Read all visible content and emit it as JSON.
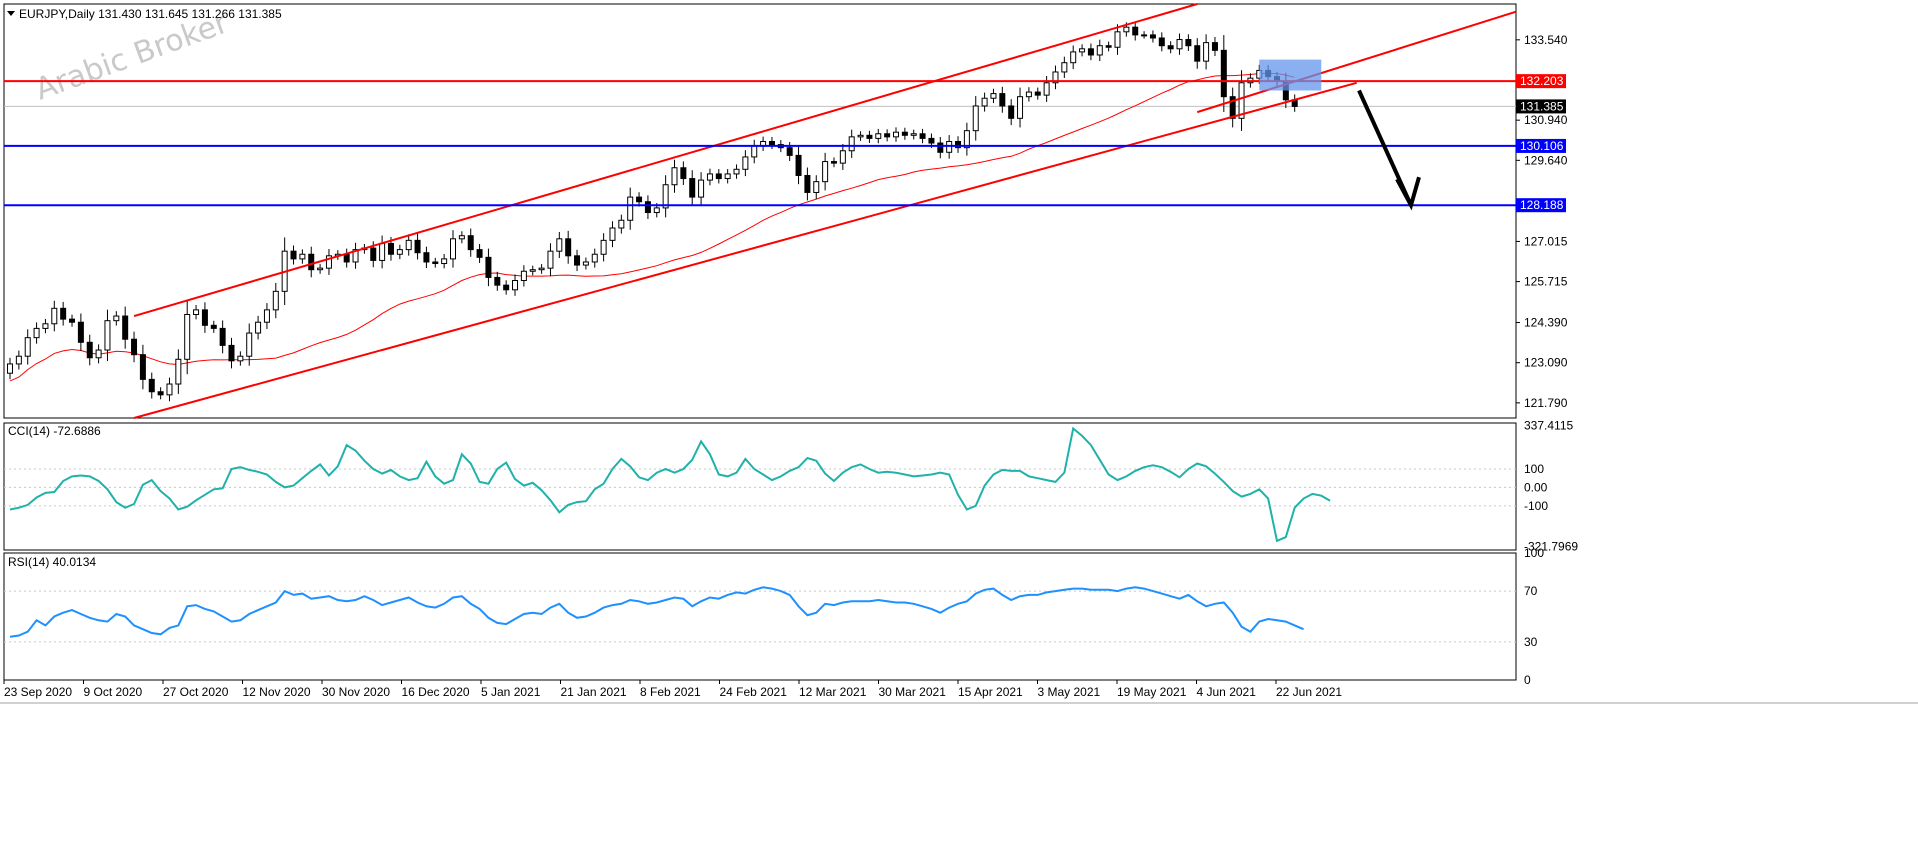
{
  "header": {
    "symbol_line": "EURJPY,Daily  131.430 131.645 131.266 131.385"
  },
  "watermark": "Arabic Broker",
  "chart_data": {
    "type": "candlestick",
    "symbol": "EURJPY",
    "timeframe": "Daily",
    "ohlc_header": {
      "open": 131.43,
      "high": 131.645,
      "low": 131.266,
      "close": 131.385
    },
    "price_axis": {
      "ticks": [
        "133.540",
        "130.940",
        "129.640",
        "127.015",
        "125.715",
        "124.390",
        "123.090",
        "121.790"
      ],
      "range": [
        121.3,
        134.7
      ]
    },
    "current_price_label": "131.385",
    "horizontal_levels": [
      {
        "value": 132.203,
        "label": "132.203",
        "color": "#ff0000"
      },
      {
        "value": 130.106,
        "label": "130.106",
        "color": "#0000ff"
      },
      {
        "value": 128.188,
        "label": "128.188",
        "color": "#0000ff"
      }
    ],
    "date_axis": [
      "23 Sep 2020",
      "9 Oct 2020",
      "27 Oct 2020",
      "12 Nov 2020",
      "30 Nov 2020",
      "16 Dec 2020",
      "5 Jan 2021",
      "21 Jan 2021",
      "8 Feb 2021",
      "24 Feb 2021",
      "12 Mar 2021",
      "30 Mar 2021",
      "15 Apr 2021",
      "3 May 2021",
      "19 May 2021",
      "4 Jun 2021",
      "22 Jun 2021"
    ],
    "closes": [
      123.05,
      123.3,
      123.9,
      124.2,
      124.35,
      124.85,
      124.5,
      124.4,
      123.75,
      123.25,
      123.5,
      124.45,
      124.6,
      123.85,
      123.35,
      122.55,
      122.15,
      122.05,
      122.4,
      123.2,
      124.65,
      124.8,
      124.3,
      124.2,
      123.65,
      123.15,
      123.3,
      124.05,
      124.4,
      124.8,
      125.4,
      126.7,
      126.45,
      126.6,
      126.1,
      126.15,
      126.55,
      126.6,
      126.35,
      126.75,
      126.8,
      126.4,
      126.95,
      126.6,
      126.75,
      127.05,
      126.65,
      126.35,
      126.3,
      126.45,
      127.1,
      127.2,
      126.75,
      126.5,
      125.85,
      125.6,
      125.45,
      125.75,
      126.05,
      126.1,
      126.15,
      126.7,
      127.1,
      126.55,
      126.25,
      126.35,
      126.6,
      127.05,
      127.45,
      127.7,
      128.45,
      128.3,
      127.95,
      128.1,
      128.85,
      129.4,
      129.05,
      128.45,
      129.0,
      129.2,
      129.05,
      129.2,
      129.35,
      129.75,
      130.1,
      130.25,
      130.15,
      130.05,
      129.8,
      129.15,
      128.6,
      128.95,
      129.6,
      129.55,
      129.95,
      130.4,
      130.45,
      130.35,
      130.5,
      130.4,
      130.55,
      130.45,
      130.5,
      130.35,
      130.2,
      129.9,
      130.25,
      130.05,
      130.6,
      131.4,
      131.65,
      131.8,
      131.4,
      131.0,
      131.7,
      131.85,
      131.75,
      132.15,
      132.5,
      132.8,
      133.15,
      133.25,
      133.05,
      133.35,
      133.3,
      133.8,
      133.95,
      133.7,
      133.7,
      133.6,
      133.35,
      133.25,
      133.55,
      133.35,
      132.85,
      133.45,
      133.2,
      131.7,
      131.0,
      132.15,
      132.3,
      132.55,
      132.35,
      132.2,
      131.6,
      131.385
    ],
    "moving_average": {
      "period": 100,
      "color": "#ff0000"
    },
    "annotations": {
      "upper_channel_line": "red",
      "lower_channel_line": "red",
      "inner_trend_line": "red",
      "resistance_box": "blue",
      "arrow": "down to 128.188"
    },
    "cci": {
      "label": "CCI(14) -72.6886",
      "ticks": [
        "337.4115",
        "100",
        "0.00",
        "-100",
        "-321.7969"
      ],
      "range": [
        -340,
        350
      ],
      "color": "#20b2aa",
      "values": [
        -120,
        -110,
        -95,
        -55,
        -30,
        -25,
        35,
        60,
        65,
        60,
        35,
        -10,
        -80,
        -110,
        -90,
        15,
        40,
        -20,
        -60,
        -120,
        -105,
        -70,
        -40,
        -10,
        -5,
        100,
        110,
        95,
        85,
        70,
        30,
        0,
        10,
        50,
        90,
        125,
        65,
        115,
        230,
        200,
        145,
        100,
        75,
        95,
        60,
        40,
        50,
        140,
        60,
        20,
        40,
        180,
        130,
        30,
        20,
        100,
        135,
        45,
        10,
        25,
        -15,
        -70,
        -135,
        -95,
        -80,
        -75,
        -10,
        20,
        100,
        155,
        115,
        55,
        40,
        80,
        100,
        80,
        100,
        150,
        250,
        180,
        70,
        60,
        80,
        155,
        100,
        70,
        40,
        60,
        90,
        110,
        160,
        145,
        75,
        35,
        80,
        110,
        125,
        100,
        80,
        85,
        80,
        70,
        60,
        65,
        70,
        80,
        70,
        -40,
        -120,
        -100,
        10,
        70,
        95,
        90,
        90,
        60,
        50,
        40,
        30,
        80,
        320,
        280,
        230,
        150,
        70,
        40,
        60,
        90,
        110,
        120,
        110,
        85,
        55,
        100,
        130,
        115,
        75,
        30,
        -20,
        -50,
        -35,
        -10,
        -60,
        -290,
        -270,
        -110,
        -60,
        -35,
        -45,
        -72.69
      ]
    },
    "rsi": {
      "label": "RSI(14) 40.0134",
      "ticks": [
        "100",
        "70",
        "30",
        "0"
      ],
      "range": [
        0,
        100
      ],
      "color": "#1e90ff",
      "values": [
        34,
        35,
        38,
        47,
        43,
        50,
        53,
        55,
        52,
        49,
        47,
        46,
        52,
        50,
        43,
        40,
        37,
        36,
        41,
        43,
        58,
        59,
        56,
        54,
        50,
        46,
        47,
        52,
        55,
        58,
        61,
        70,
        67,
        68,
        64,
        65,
        66,
        63,
        62,
        63,
        66,
        63,
        59,
        61,
        63,
        65,
        61,
        58,
        57,
        60,
        65,
        66,
        60,
        56,
        49,
        45,
        44,
        48,
        52,
        53,
        52,
        57,
        60,
        53,
        49,
        50,
        53,
        57,
        59,
        60,
        63,
        62,
        60,
        61,
        63,
        65,
        64,
        58,
        62,
        65,
        64,
        67,
        69,
        68,
        71,
        73,
        72,
        70,
        67,
        58,
        51,
        53,
        60,
        59,
        61,
        62,
        62,
        62,
        63,
        62,
        61,
        61,
        60,
        58,
        56,
        53,
        57,
        60,
        62,
        68,
        71,
        72,
        67,
        63,
        66,
        67,
        67,
        69,
        70,
        71,
        72,
        72,
        71,
        71,
        71,
        70,
        72,
        73,
        72,
        70,
        68,
        66,
        64,
        67,
        62,
        58,
        60,
        61,
        53,
        42,
        38,
        46,
        48,
        47,
        46,
        43,
        40.01
      ]
    }
  }
}
